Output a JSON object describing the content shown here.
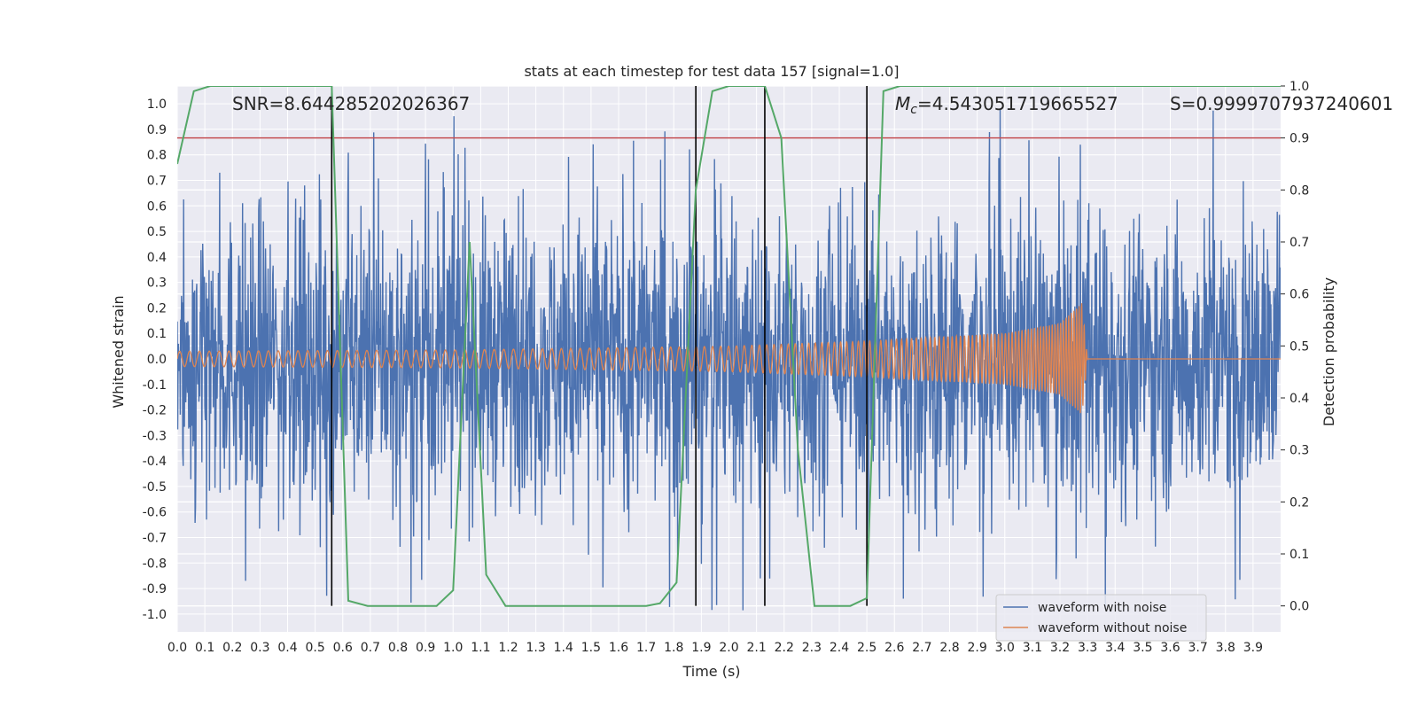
{
  "chart_data": {
    "type": "line",
    "title": "stats at each timestep for test data 157 [signal=1.0]",
    "xlabel": "Time (s)",
    "ylabel": "Whitened strain",
    "y2label": "Detection probability",
    "xlim": [
      0.0,
      4.0
    ],
    "ylim": [
      -1.07,
      1.07
    ],
    "y2lim": [
      -0.05,
      1.0
    ],
    "grid": true,
    "legend_position": "bottom-right",
    "colors": {
      "background": "#eaeaf2",
      "noise": "#4c72b0",
      "clean": "#dd8452",
      "probability": "#55a868",
      "threshold": "#c44e52",
      "marker": "#000000",
      "grid": "#ffffff"
    },
    "x_ticks": [
      "0.0",
      "0.1",
      "0.2",
      "0.3",
      "0.4",
      "0.5",
      "0.6",
      "0.7",
      "0.8",
      "0.9",
      "1.0",
      "1.1",
      "1.2",
      "1.3",
      "1.4",
      "1.5",
      "1.6",
      "1.7",
      "1.8",
      "1.9",
      "2.0",
      "2.1",
      "2.2",
      "2.3",
      "2.4",
      "2.5",
      "2.6",
      "2.7",
      "2.8",
      "2.9",
      "3.0",
      "3.1",
      "3.2",
      "3.3",
      "3.4",
      "3.5",
      "3.6",
      "3.7",
      "3.8",
      "3.9"
    ],
    "y_ticks": [
      "1.0",
      "0.9",
      "0.8",
      "0.7",
      "0.6",
      "0.5",
      "0.4",
      "0.3",
      "0.2",
      "0.1",
      "0.0",
      "-0.1",
      "-0.2",
      "-0.3",
      "-0.4",
      "-0.5",
      "-0.6",
      "-0.7",
      "-0.8",
      "-0.9",
      "-1.0"
    ],
    "y2_ticks": [
      "1.0",
      "0.9",
      "0.8",
      "0.7",
      "0.6",
      "0.5",
      "0.4",
      "0.3",
      "0.2",
      "0.1",
      "0.0"
    ],
    "annotations": {
      "snr": "SNR=8.644285202026367",
      "mc": "=4.543051719665527",
      "mc_symbol": "M",
      "mc_sub": "c",
      "s": "S=0.9999707937240601"
    },
    "threshold": 0.9,
    "vertical_markers": [
      0.56,
      1.88,
      2.13,
      2.5
    ],
    "series": [
      {
        "name": "waveform with noise",
        "axis": "left",
        "amplitude_envelope": 0.6,
        "t_start": 0.0,
        "t_end": 4.0
      },
      {
        "name": "waveform without noise",
        "axis": "left",
        "amplitude_envelope": [
          [
            0.0,
            0.03
          ],
          [
            1.0,
            0.035
          ],
          [
            2.0,
            0.05
          ],
          [
            2.5,
            0.07
          ],
          [
            3.0,
            0.1
          ],
          [
            3.2,
            0.14
          ],
          [
            3.28,
            0.22
          ],
          [
            3.3,
            0.0
          ],
          [
            4.0,
            0.0
          ]
        ],
        "t_start": 0.0,
        "t_end": 4.0
      },
      {
        "name": "detection probability",
        "axis": "right",
        "x": [
          0.0,
          0.06,
          0.12,
          0.2,
          0.3,
          0.4,
          0.5,
          0.56,
          0.62,
          0.69,
          0.8,
          0.94,
          1.0,
          1.06,
          1.12,
          1.19,
          1.3,
          1.5,
          1.7,
          1.75,
          1.81,
          1.88,
          1.94,
          2.0,
          2.06,
          2.13,
          2.19,
          2.25,
          2.31,
          2.44,
          2.5,
          2.56,
          2.62,
          2.8,
          3.0,
          3.3,
          3.6,
          4.0
        ],
        "values": [
          0.85,
          0.99,
          1.0,
          1.0,
          1.0,
          1.0,
          1.0,
          1.0,
          0.01,
          0.0,
          0.0,
          0.0,
          0.03,
          0.7,
          0.06,
          0.0,
          0.0,
          0.0,
          0.0,
          0.005,
          0.045,
          0.8,
          0.99,
          1.0,
          1.0,
          1.0,
          0.9,
          0.3,
          0.0,
          0.0,
          0.015,
          0.99,
          1.0,
          1.0,
          1.0,
          1.0,
          1.0,
          1.0
        ]
      }
    ],
    "legend": [
      "waveform with noise",
      "waveform without noise"
    ]
  }
}
